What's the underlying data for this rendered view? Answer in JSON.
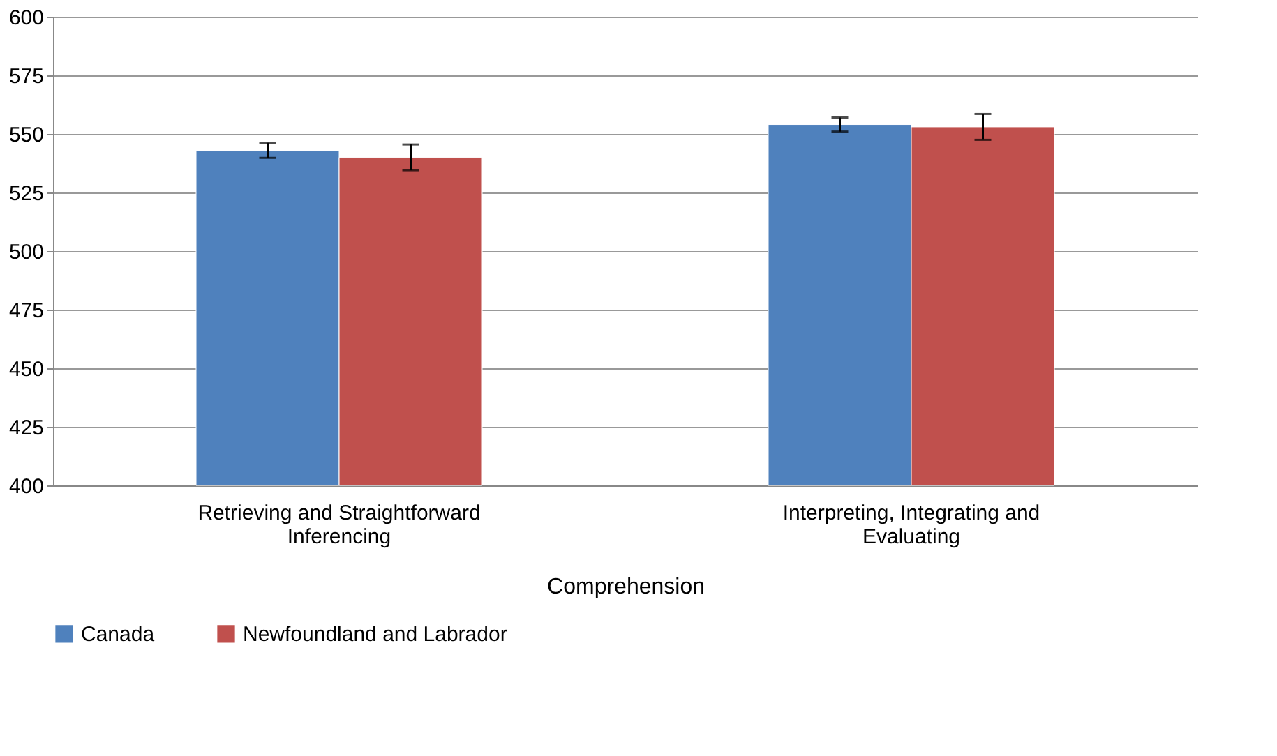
{
  "chart_data": {
    "type": "bar",
    "xlabel": "Comprehension",
    "categories": [
      "Retrieving and Straightforward Inferencing",
      "Interpreting, Integrating and Evaluating"
    ],
    "series": [
      {
        "name": "Canada",
        "color": "#4f81bd",
        "values": [
          543,
          554
        ],
        "errors": [
          3.2,
          3
        ]
      },
      {
        "name": "Newfoundland and Labrador",
        "color": "#c0504d",
        "values": [
          540,
          553
        ],
        "errors": [
          5.5,
          5.5
        ]
      }
    ],
    "ylim": [
      400,
      600
    ],
    "yticks": [
      400,
      425,
      450,
      475,
      500,
      525,
      550,
      575,
      600
    ],
    "grid": "y",
    "legend": "bottom"
  }
}
